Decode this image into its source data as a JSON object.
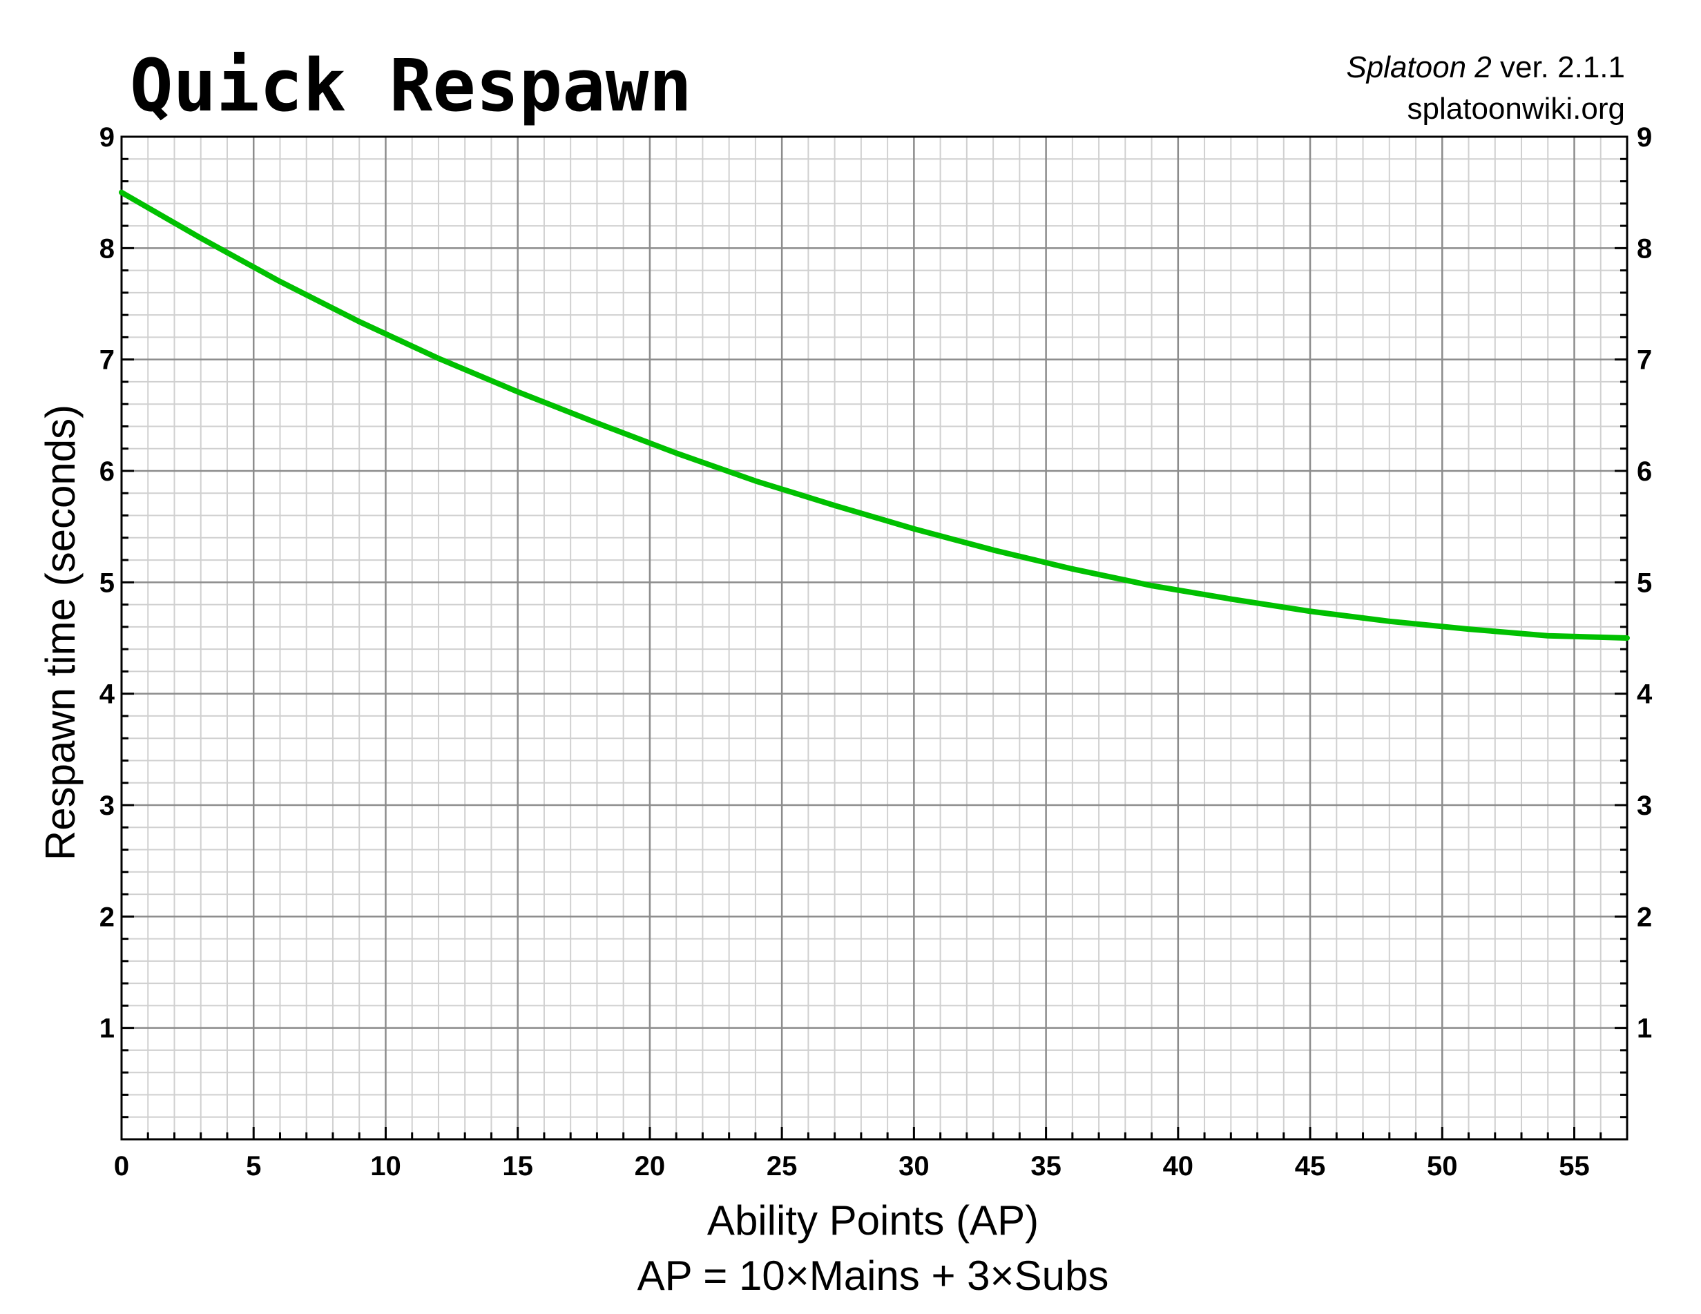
{
  "chart_data": {
    "type": "line",
    "title": "Quick Respawn",
    "credit": {
      "game": "Splatoon 2",
      "version": " ver. 2.1.1",
      "site": "splatoonwiki.org"
    },
    "xlabel": "Ability Points (AP)",
    "xlabel_sub": "AP = 10×Mains + 3×Subs",
    "ylabel": "Respawn time (seconds)",
    "xlim": [
      0,
      57
    ],
    "ylim": [
      0,
      9
    ],
    "x_ticks": [
      0,
      5,
      10,
      15,
      20,
      25,
      30,
      35,
      40,
      45,
      50,
      55
    ],
    "y_ticks": [
      1,
      2,
      3,
      4,
      5,
      6,
      7,
      8,
      9
    ],
    "grid": true,
    "series": [
      {
        "color": "#00c000",
        "x": [
          0,
          3,
          6,
          9,
          12,
          15,
          18,
          21,
          24,
          27,
          30,
          33,
          36,
          39,
          42,
          45,
          48,
          51,
          54,
          57
        ],
        "y": [
          8.5,
          8.09,
          7.7,
          7.34,
          7.01,
          6.71,
          6.43,
          6.16,
          5.91,
          5.69,
          5.48,
          5.29,
          5.12,
          4.97,
          4.85,
          4.74,
          4.65,
          4.58,
          4.52,
          4.5
        ]
      }
    ]
  }
}
